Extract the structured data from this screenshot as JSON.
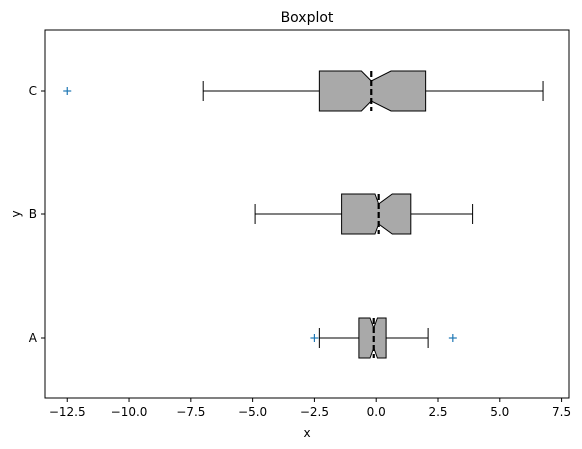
{
  "chart_data": {
    "type": "boxplot",
    "orientation": "horizontal",
    "title": "Boxplot",
    "xlabel": "x",
    "ylabel": "y",
    "xlim": [
      -13.4,
      7.8
    ],
    "x_ticks": [
      -12.5,
      -10.0,
      -7.5,
      -5.0,
      -2.5,
      0.0,
      2.5,
      5.0,
      7.5
    ],
    "x_tick_labels": [
      "−12.5",
      "−10.0",
      "−7.5",
      "−5.0",
      "−2.5",
      "0.0",
      "2.5",
      "5.0",
      "7.5"
    ],
    "categories": [
      "A",
      "B",
      "C"
    ],
    "notched": true,
    "median_style": "dashed",
    "box_color": "#a9a9a9",
    "flier_marker": "+",
    "flier_color": "#1f77b4",
    "boxes": [
      {
        "category": "A",
        "whisker_low": -2.3,
        "q1": -0.7,
        "notch_low": -0.25,
        "median": -0.1,
        "notch_high": 0.05,
        "q3": 0.4,
        "whisker_high": 2.1,
        "fliers": [
          -2.5,
          3.1
        ]
      },
      {
        "category": "B",
        "whisker_low": -4.9,
        "q1": -1.4,
        "notch_low": -0.05,
        "median": 0.1,
        "notch_high": 0.65,
        "q3": 1.4,
        "whisker_high": 3.9,
        "fliers": []
      },
      {
        "category": "C",
        "whisker_low": -7.0,
        "q1": -2.3,
        "notch_low": -0.6,
        "median": -0.2,
        "notch_high": 0.6,
        "q3": 2.0,
        "whisker_high": 6.75,
        "fliers": [
          -12.5
        ]
      }
    ]
  }
}
